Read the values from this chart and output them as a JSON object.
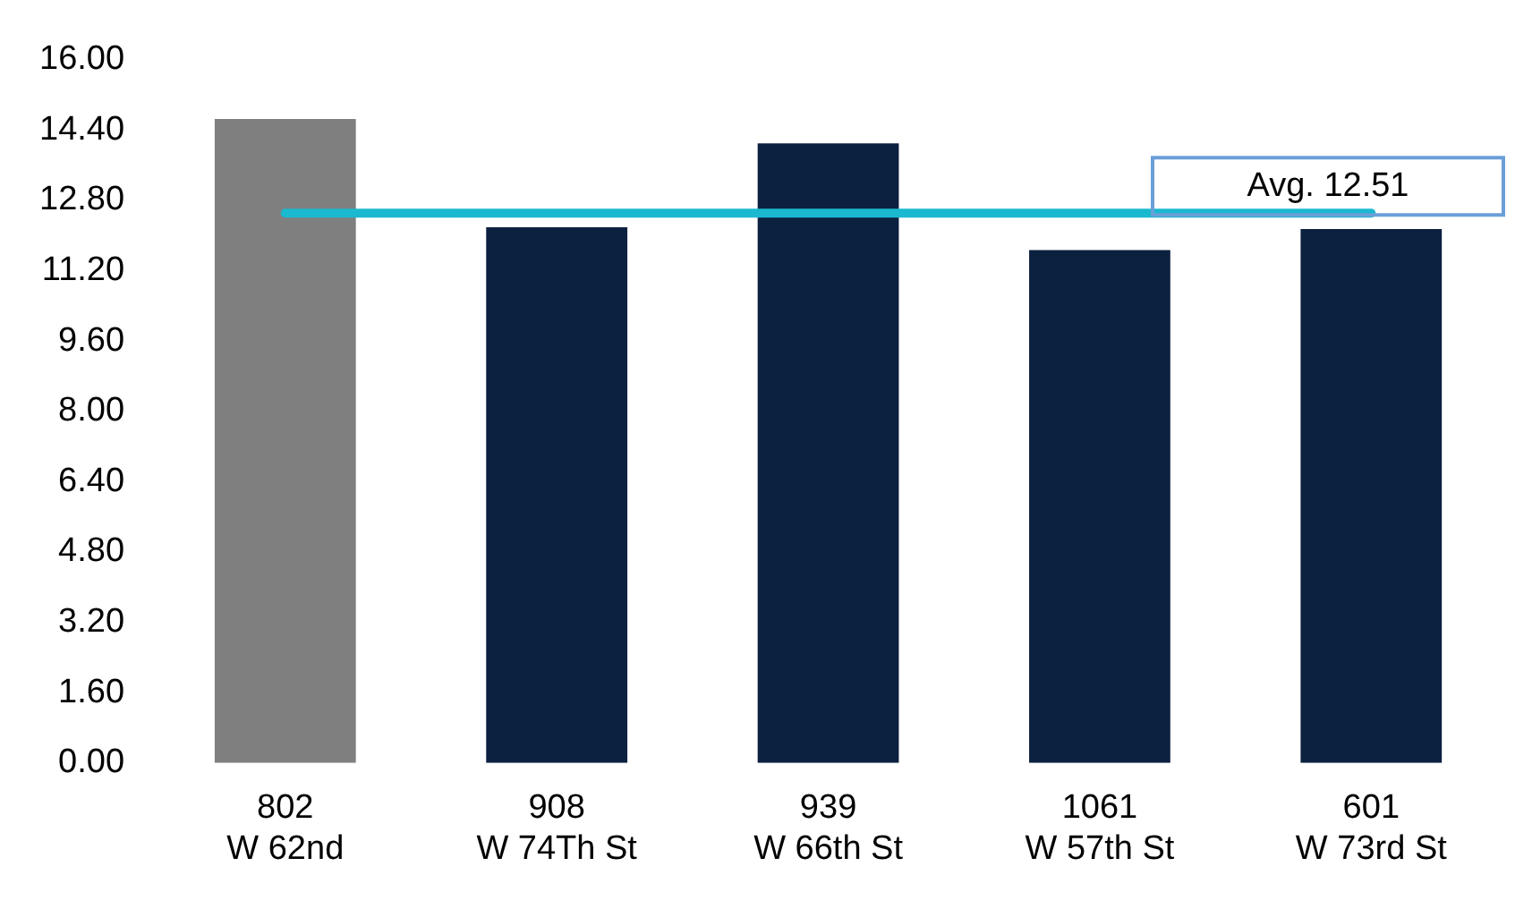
{
  "chart_data": {
    "type": "bar",
    "categories": [
      "802 W 62nd",
      "908 W 74Th St",
      "939 W 66th St",
      "1061 W 57th St",
      "601 W 73rd St"
    ],
    "values": [
      14.65,
      12.19,
      14.1,
      11.67,
      12.15
    ],
    "colors": [
      "#7f7f7f",
      "#0c203f",
      "#0c203f",
      "#0c203f",
      "#0c203f"
    ],
    "ylim": [
      0,
      16
    ],
    "yticks": [
      {
        "value": 0,
        "label": "0.00"
      },
      {
        "value": 1.6,
        "label": "1.60"
      },
      {
        "value": 3.2,
        "label": "3.20"
      },
      {
        "value": 4.8,
        "label": "4.80"
      },
      {
        "value": 6.4,
        "label": "6.40"
      },
      {
        "value": 8,
        "label": "8.00"
      },
      {
        "value": 9.6,
        "label": "9.60"
      },
      {
        "value": 11.2,
        "label": "11.20"
      },
      {
        "value": 12.8,
        "label": "12.80"
      },
      {
        "value": 14.4,
        "label": "14.40"
      },
      {
        "value": 16,
        "label": "16.00"
      }
    ],
    "ref_lines": [
      {
        "axis": "y",
        "value": 12.51,
        "label": "Avg. 12.51",
        "color": "#1ab9d0"
      }
    ],
    "grid": false,
    "legend": false
  }
}
